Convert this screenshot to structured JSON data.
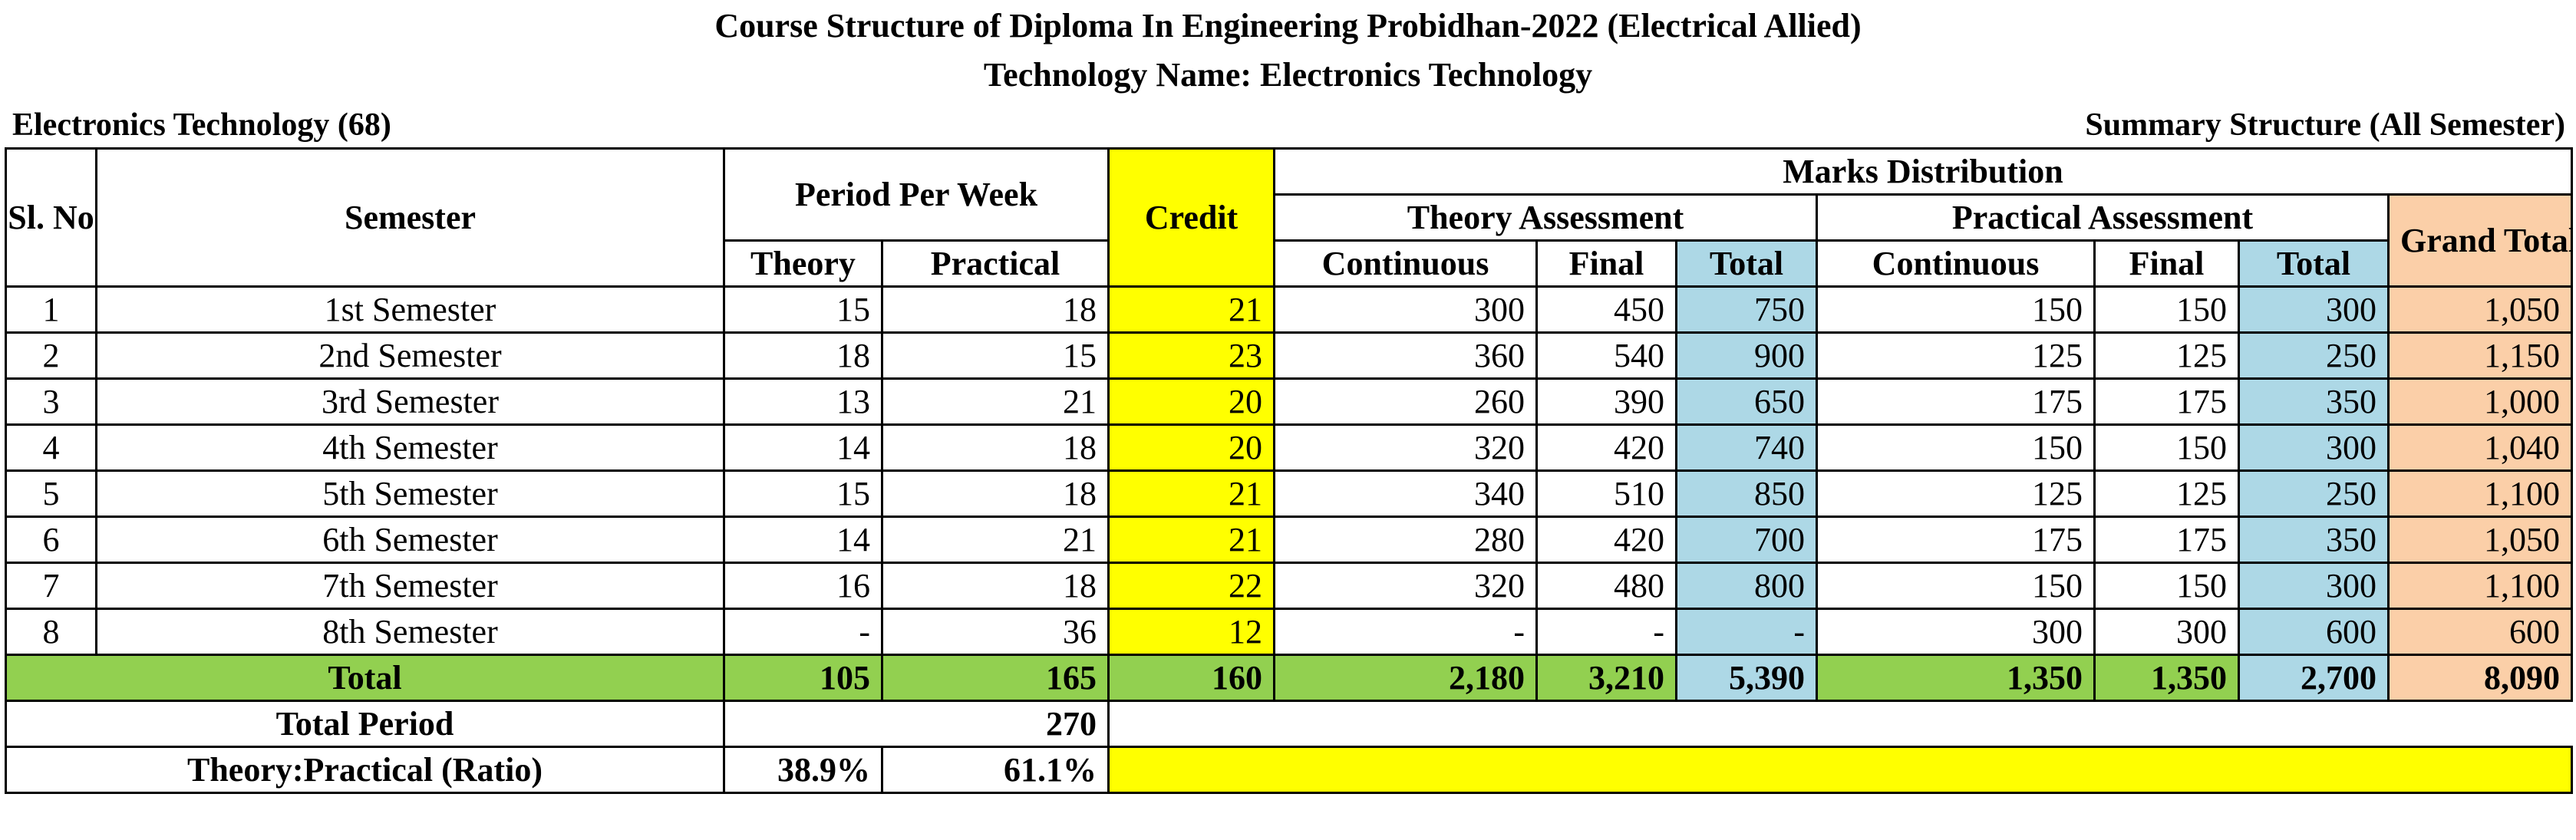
{
  "title_line1": "Course Structure of Diploma In Engineering Probidhan-2022 (Electrical Allied)",
  "title_line2": "Technology Name: Electronics Technology",
  "left_subtitle": "Electronics Technology (68)",
  "right_subtitle": "Summary Structure (All Semester)",
  "headers": {
    "sl_no": "Sl. No",
    "semester": "Semester",
    "period_per_week": "Period Per Week",
    "credit": "Credit",
    "marks_distribution": "Marks Distribution",
    "theory_assessment": "Theory Assessment",
    "practical_assessment": "Practical Assessment",
    "grand_total": "Grand Total",
    "theory": "Theory",
    "practical": "Practical",
    "continuous": "Continuous",
    "final": "Final",
    "total": "Total"
  },
  "rows": [
    {
      "sl": "1",
      "semester": "1st Semester",
      "theory": "15",
      "practical": "18",
      "credit": "21",
      "t_cont": "300",
      "t_final": "450",
      "t_total": "750",
      "p_cont": "150",
      "p_final": "150",
      "p_total": "300",
      "grand": "1,050"
    },
    {
      "sl": "2",
      "semester": "2nd Semester",
      "theory": "18",
      "practical": "15",
      "credit": "23",
      "t_cont": "360",
      "t_final": "540",
      "t_total": "900",
      "p_cont": "125",
      "p_final": "125",
      "p_total": "250",
      "grand": "1,150"
    },
    {
      "sl": "3",
      "semester": "3rd Semester",
      "theory": "13",
      "practical": "21",
      "credit": "20",
      "t_cont": "260",
      "t_final": "390",
      "t_total": "650",
      "p_cont": "175",
      "p_final": "175",
      "p_total": "350",
      "grand": "1,000"
    },
    {
      "sl": "4",
      "semester": "4th Semester",
      "theory": "14",
      "practical": "18",
      "credit": "20",
      "t_cont": "320",
      "t_final": "420",
      "t_total": "740",
      "p_cont": "150",
      "p_final": "150",
      "p_total": "300",
      "grand": "1,040"
    },
    {
      "sl": "5",
      "semester": "5th Semester",
      "theory": "15",
      "practical": "18",
      "credit": "21",
      "t_cont": "340",
      "t_final": "510",
      "t_total": "850",
      "p_cont": "125",
      "p_final": "125",
      "p_total": "250",
      "grand": "1,100"
    },
    {
      "sl": "6",
      "semester": "6th Semester",
      "theory": "14",
      "practical": "21",
      "credit": "21",
      "t_cont": "280",
      "t_final": "420",
      "t_total": "700",
      "p_cont": "175",
      "p_final": "175",
      "p_total": "350",
      "grand": "1,050"
    },
    {
      "sl": "7",
      "semester": "7th Semester",
      "theory": "16",
      "practical": "18",
      "credit": "22",
      "t_cont": "320",
      "t_final": "480",
      "t_total": "800",
      "p_cont": "150",
      "p_final": "150",
      "p_total": "300",
      "grand": "1,100"
    },
    {
      "sl": "8",
      "semester": "8th Semester",
      "theory": "-",
      "practical": "36",
      "credit": "12",
      "t_cont": "-",
      "t_final": "-",
      "t_total": "-",
      "p_cont": "300",
      "p_final": "300",
      "p_total": "600",
      "grand": "600"
    }
  ],
  "total_row": {
    "label": "Total",
    "theory": "105",
    "practical": "165",
    "credit": "160",
    "t_cont": "2,180",
    "t_final": "3,210",
    "t_total": "5,390",
    "p_cont": "1,350",
    "p_final": "1,350",
    "p_total": "2,700",
    "grand": "8,090"
  },
  "total_period": {
    "label": "Total Period",
    "value": "270"
  },
  "ratio": {
    "label": "Theory:Practical (Ratio)",
    "theory": "38.9%",
    "practical": "61.1%"
  },
  "colors": {
    "credit": "#ffff00",
    "total_cols": "#add8e6",
    "grand_total": "#fbcfa8",
    "total_row": "#92d050"
  }
}
